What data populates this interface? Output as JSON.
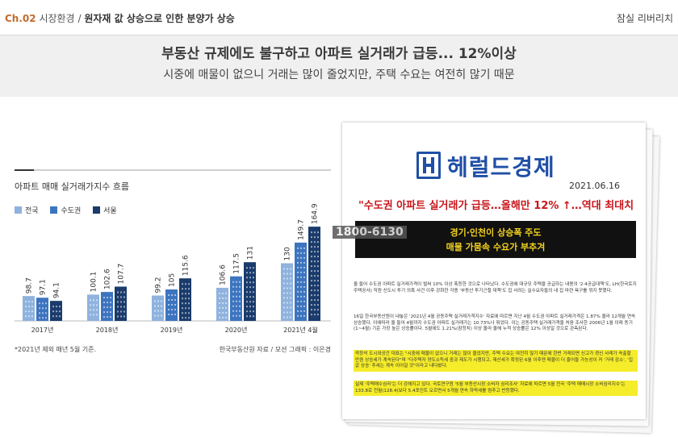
{
  "header": {
    "chapter": "Ch.02",
    "section": "시장환경",
    "slash": "/",
    "title": "원자재 값 상승으로 인한 분양가 상승",
    "right_label": "잠실 리버리치"
  },
  "headline": {
    "main": "부동산 규제에도 불구하고 아파트 실거래가 급등... 12%이상",
    "sub": "시중에 매물이 없으니 거래는 많이 줄었지만, 주택 수요는 여전히 많기 때문"
  },
  "colors": {
    "national": "#8fb3de",
    "capital": "#3d74bf",
    "seoul": "#1a3b6b"
  },
  "chart_data": {
    "type": "bar",
    "title": "아파트 매매 실거래가지수 흐름",
    "categories": [
      "2017년",
      "2018년",
      "2019년",
      "2020년",
      "2021년 4월"
    ],
    "series": [
      {
        "name": "전국",
        "values": [
          98.7,
          100.1,
          99.2,
          106.6,
          130
        ]
      },
      {
        "name": "수도권",
        "values": [
          97.1,
          102.6,
          105,
          117.5,
          149.7
        ]
      },
      {
        "name": "서울",
        "values": [
          94.1,
          107.7,
          115.6,
          131,
          164.9
        ]
      }
    ],
    "value_labels": [
      [
        "98.7",
        "97.1",
        "94.1"
      ],
      [
        "100.1",
        "102.6",
        "107.7"
      ],
      [
        "99.2",
        "105",
        "115.6"
      ],
      [
        "106.6",
        "117.5",
        "131"
      ],
      [
        "130",
        "149.7",
        "164.9"
      ]
    ],
    "note": "*2021년 제외 매년 5월 기준.",
    "source": "한국부동산원 자료 / 모션 그래픽 : 이은경"
  },
  "newspaper": {
    "logo_text": "헤럴드경제",
    "date": "2021.06.16",
    "headline": "\"수도권 아파트 실거래가 급등…올해만 12% ↑…역대 최대치",
    "phone_overlay": "1800-6130",
    "box_line1": "경기·인천이 상승폭 주도",
    "box_line2": "매물 가뭄속 수요가 부추겨",
    "para1": "올 들어 수도권 아파트 실거래가격이 벌써 10% 이상 폭등한 것으로 나타났다. 수도권에 대규모 주택을 공급하는 내용의 '2·4공급대책'도, LH(한국토지주택공사) 직원 신도시 투기 의혹 사건 이후 강화한 각종 '부동산 투기근절 대책'도 집 사려는 실수요자들의 내 집 마련 욕구를 꺾지 못했다.",
    "para2": "16일 한국부동산원이 내놓은 '2021년 4월 공동주택 실거래가격지수' 자료에 따르면 지난 4월 수도권 아파트 실거래가격은 1.87% 올라 12개월 연속 상승했다. 이에따라 올 들어 4월까지 수도권 아파트 실거래가는 10.73%나 뛰었다. 이는 공동주택 실거래가격을 처음 조사한 2006년 1월 이래 동기(1~4월) 기준 가장 높은 상승률이다. 5월에도 1.21%(잠정치) 이상 올라 올해 누적 상승률은 12% 이상일 것으로 관측된다.",
    "para3": "곽창석 도시와공간 대표는 \"시중에 매물이 없으니 거래는 많이 줄었지만, 주택 수요는 여전히 많기 때문에 한번 거래되면 신고가 경신 사례가 속출할 만큼 상승세가 계속된다\"며 \"다주택자 양도소득세 중과 제도가 시행되고, 재산세가 확정된 6월 이후엔 매물이 더 줄어들 가능성이 커 '거래 감소', '집값 상승' 추세는 계속 이어질 것\"이라고 내다봤다.",
    "para4": "실제 '주택매수심리'는 더 강해지고 있다. 국토연구원 '5월 부동산시장 소비자 심리조사' 자료에 따르면 5월 전국 '주택 매매시장 소비심리지수'는 133.8로 전월(128.4)보다 5.4포인트 오르면서 5개월 연속 하락세를 멈추고 반등했다."
  }
}
